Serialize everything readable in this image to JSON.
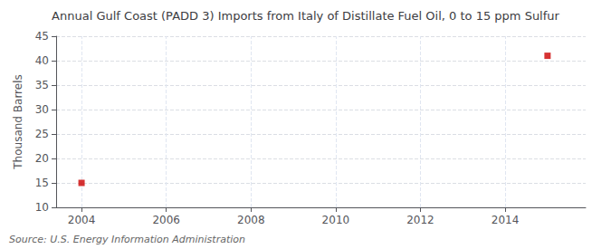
{
  "chart_data": {
    "type": "scatter",
    "title": "Annual Gulf Coast (PADD 3) Imports from Italy of Distillate Fuel Oil, 0 to 15 ppm Sulfur",
    "ylabel": "Thousand Barrels",
    "annotation": "Source: U.S. Energy Information Administration",
    "x": [
      2004,
      2015
    ],
    "values": [
      15,
      41
    ],
    "color": "#cc0000",
    "marker": "square",
    "xlim": [
      2003.4,
      2015.9
    ],
    "ylim": [
      10,
      45
    ],
    "xticks": [
      2004,
      2006,
      2008,
      2010,
      2012,
      2014
    ],
    "yticks": [
      10,
      15,
      20,
      25,
      30,
      35,
      40,
      45
    ],
    "grid": true
  }
}
